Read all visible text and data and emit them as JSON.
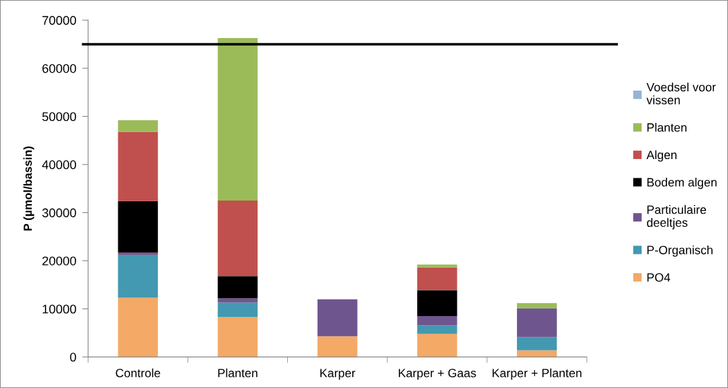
{
  "chart_data": {
    "type": "bar",
    "stacked": true,
    "ylabel": "P (µmol/bassin)",
    "categories": [
      "Controle",
      "Planten",
      "Karper",
      "Karper + Gaas",
      "Karper + Planten"
    ],
    "series": [
      {
        "name": "PO4",
        "color": "#f4a966",
        "values": [
          12300,
          8300,
          4300,
          4800,
          1400
        ]
      },
      {
        "name": "P-Organisch",
        "color": "#4299b1",
        "values": [
          8900,
          3000,
          0,
          1800,
          2700
        ]
      },
      {
        "name": "Particulaire deeltjes",
        "color": "#6f558e",
        "values": [
          500,
          900,
          7700,
          1900,
          6000
        ]
      },
      {
        "name": "Bodem algen",
        "color": "#000000",
        "values": [
          10700,
          4600,
          0,
          5400,
          0
        ]
      },
      {
        "name": "Algen",
        "color": "#c0504d",
        "values": [
          14400,
          15700,
          0,
          4700,
          0
        ]
      },
      {
        "name": "Planten",
        "color": "#9bbb59",
        "values": [
          2400,
          33800,
          0,
          600,
          1100
        ]
      },
      {
        "name": "Voedsel voor vissen",
        "color": "#95b3d7",
        "values": [
          0,
          0,
          0,
          0,
          0
        ]
      }
    ],
    "ylim": [
      0,
      70000
    ],
    "yticks": [
      0,
      10000,
      20000,
      30000,
      40000,
      50000,
      60000,
      70000
    ],
    "ref_lines": [
      {
        "axis": "y",
        "value": 65000,
        "color": "#000000",
        "line_style": "solid"
      }
    ],
    "grid": false,
    "legend": "right"
  }
}
